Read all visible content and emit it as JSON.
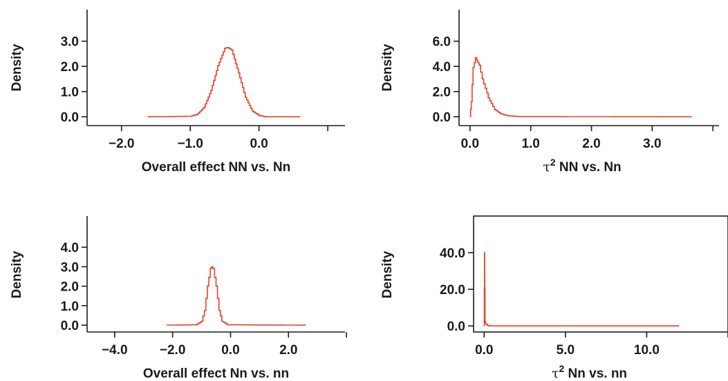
{
  "colors": {
    "curve": "#e8402a",
    "axis": "#1a1a1a"
  },
  "chart_data": [
    {
      "type": "line",
      "xlabel": "Overall effect NN vs. Nn",
      "ylabel": "Density",
      "xlim": [
        -2.5,
        1.25
      ],
      "ylim": [
        -0.35,
        4.25
      ],
      "xticks": [
        -2.0,
        -1.0,
        0.0,
        1.0
      ],
      "xtick_labels": [
        "−2.0",
        "−1.0",
        "0.0"
      ],
      "yticks": [
        0.0,
        1.0,
        2.0,
        3.0
      ],
      "ytick_labels": [
        "0.0",
        "1.0",
        "2.0",
        "3.0"
      ],
      "series": [
        {
          "distribution": "normal",
          "mean": -0.46,
          "peak": 2.75,
          "xmin": -1.62,
          "xmax": 0.6,
          "x": [
            -1.62,
            -1.0,
            -0.9,
            -0.8,
            -0.7,
            -0.6,
            -0.5,
            -0.46,
            -0.4,
            -0.3,
            -0.2,
            -0.1,
            0.0,
            0.1,
            0.6
          ],
          "y": [
            0.0,
            0.02,
            0.1,
            0.38,
            1.05,
            2.03,
            2.72,
            2.75,
            2.65,
            1.74,
            0.77,
            0.23,
            0.05,
            0.0,
            0.0
          ]
        }
      ]
    },
    {
      "type": "line",
      "xlabel_parts": {
        "symbol": "τ",
        "sup": "2",
        "rest": " NN vs. Nn"
      },
      "ylabel": "Density",
      "xlim": [
        -0.18,
        4.1
      ],
      "ylim": [
        -0.7,
        8.5
      ],
      "xticks": [
        0.0,
        1.0,
        2.0,
        3.0,
        4.0
      ],
      "xtick_labels": [
        "0.0",
        "1.0",
        "2.0",
        "3.0"
      ],
      "yticks": [
        0.0,
        2.0,
        4.0,
        6.0
      ],
      "ytick_labels": [
        "0.0",
        "2.0",
        "4.0",
        "6.0"
      ],
      "series": [
        {
          "distribution": "right-skewed",
          "mode": 0.09,
          "peak": 4.7,
          "xmin": 0.0,
          "xmax": 3.65,
          "x": [
            0.0,
            0.02,
            0.05,
            0.09,
            0.15,
            0.2,
            0.3,
            0.4,
            0.5,
            0.6,
            0.8,
            3.65
          ],
          "y": [
            0.0,
            1.2,
            3.9,
            4.7,
            4.1,
            3.0,
            1.5,
            0.6,
            0.25,
            0.1,
            0.02,
            0.0
          ]
        }
      ]
    },
    {
      "type": "line",
      "xlabel": "Overall effect Nn vs. nn",
      "ylabel": "Density",
      "xlim": [
        -4.95,
        3.95
      ],
      "ylim": [
        -0.35,
        5.6
      ],
      "xticks": [
        -4.0,
        -2.0,
        0.0,
        2.0,
        4.0
      ],
      "xtick_labels": [
        "−4.0",
        "−2.0",
        "0.0",
        "2.0"
      ],
      "yticks": [
        0.0,
        1.0,
        2.0,
        3.0,
        4.0
      ],
      "ytick_labels": [
        "0.0",
        "1.0",
        "2.0",
        "3.0",
        "4.0"
      ],
      "series": [
        {
          "distribution": "normal",
          "mean": -0.65,
          "peak": 3.0,
          "xmin": -2.2,
          "xmax": 2.6,
          "x": [
            -2.2,
            -1.2,
            -1.0,
            -0.9,
            -0.8,
            -0.7,
            -0.65,
            -0.6,
            -0.5,
            -0.4,
            -0.3,
            -0.1,
            2.6
          ],
          "y": [
            0.0,
            0.02,
            0.2,
            0.75,
            2.0,
            2.9,
            3.0,
            2.9,
            2.0,
            0.75,
            0.2,
            0.02,
            0.0
          ]
        }
      ]
    },
    {
      "type": "line",
      "xlabel_parts": {
        "symbol": "τ",
        "sup": "2",
        "rest": " Nn vs. nn"
      },
      "ylabel": "Density",
      "xlim": [
        -0.65,
        15.0
      ],
      "ylim": [
        -3.3,
        60.0
      ],
      "xticks": [
        0.0,
        5.0,
        10.0,
        15.0
      ],
      "xtick_labels": [
        "0.0",
        "5.0",
        "10.0"
      ],
      "yticks": [
        0.0,
        20.0,
        40.0
      ],
      "ytick_labels": [
        "0.0",
        "20.0",
        "40.0"
      ],
      "series": [
        {
          "distribution": "spike-at-zero",
          "peak": 40.0,
          "xmin": 0.0,
          "xmax": 12.0,
          "x": [
            0.0,
            0.02,
            0.05,
            0.1,
            0.2,
            0.3,
            12.0
          ],
          "y": [
            0.0,
            40.0,
            2.5,
            1.2,
            0.3,
            0.0,
            0.0
          ]
        }
      ]
    }
  ]
}
